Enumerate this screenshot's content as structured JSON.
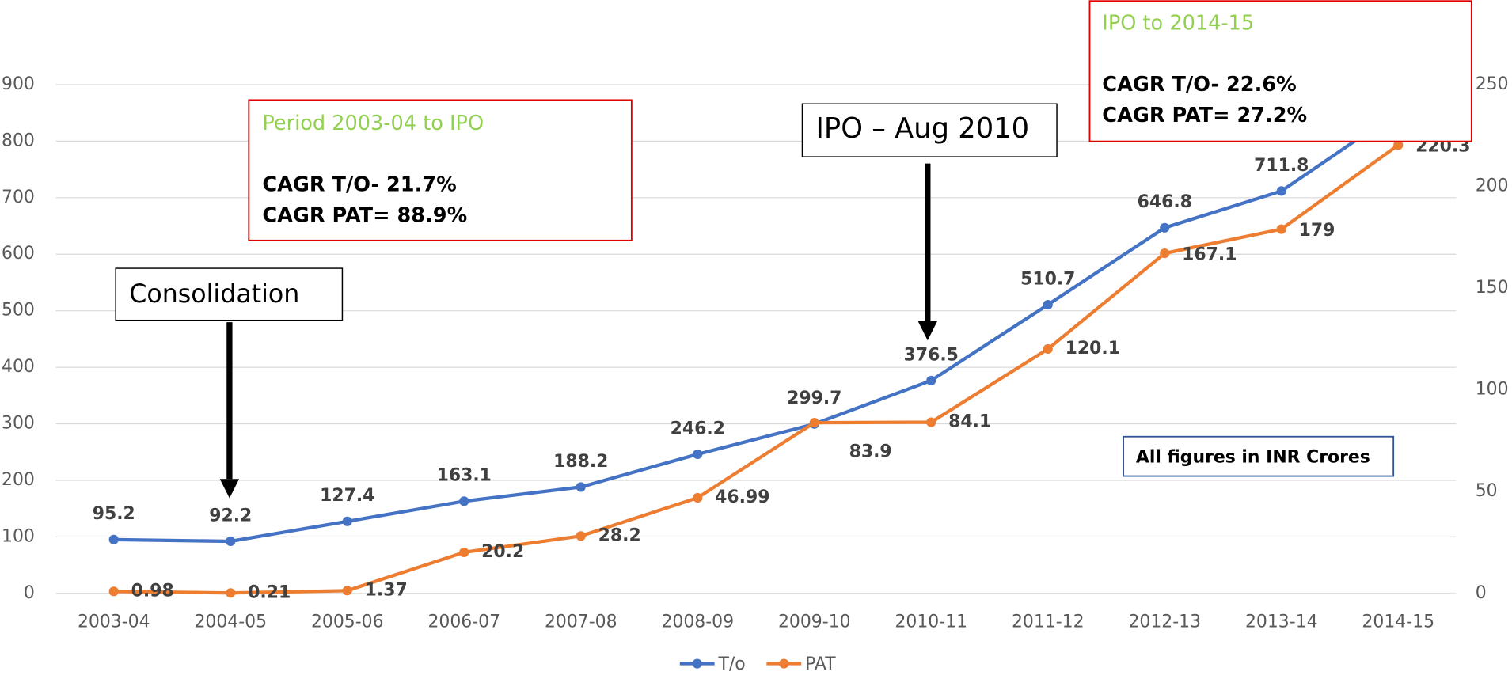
{
  "chart_data": {
    "type": "line",
    "categories": [
      "2003-04",
      "2004-05",
      "2005-06",
      "2006-07",
      "2007-08",
      "2008-09",
      "2009-10",
      "2010-11",
      "2011-12",
      "2012-13",
      "2013-14",
      "2014-15"
    ],
    "series": [
      {
        "name": "T/o",
        "color": "#4472c4",
        "values": [
          95.2,
          92.2,
          127.4,
          163.1,
          188.2,
          246.2,
          299.7,
          376.5,
          510.7,
          646.8,
          711.8,
          852.6
        ]
      },
      {
        "name": "PAT",
        "color": "#ed7d31",
        "axis": "y2",
        "values": [
          0.98,
          0.21,
          1.37,
          20.2,
          28.2,
          46.99,
          83.9,
          84.1,
          120.1,
          167.1,
          179,
          220.3
        ]
      }
    ],
    "ylim": [
      0,
      900
    ],
    "yticks": [
      0,
      100,
      200,
      300,
      400,
      500,
      600,
      700,
      800,
      900
    ],
    "y2lim": [
      0,
      250
    ],
    "y2ticks": [
      0,
      50,
      100,
      150,
      200,
      250
    ],
    "grid": true,
    "legend": "bottom",
    "annotations": {
      "period_box": {
        "title": "Period 2003-04 to IPO",
        "line1": "CAGR T/O- 21.7%",
        "line2": "CAGR PAT= 88.9%"
      },
      "ipo_box": {
        "title": "IPO to 2014-15",
        "line1": "CAGR T/O- 22.6%",
        "line2": "CAGR PAT= 27.2%"
      },
      "consolidation": "Consolidation",
      "ipo": "IPO – Aug 2010",
      "units": "All figures in INR Crores"
    }
  }
}
